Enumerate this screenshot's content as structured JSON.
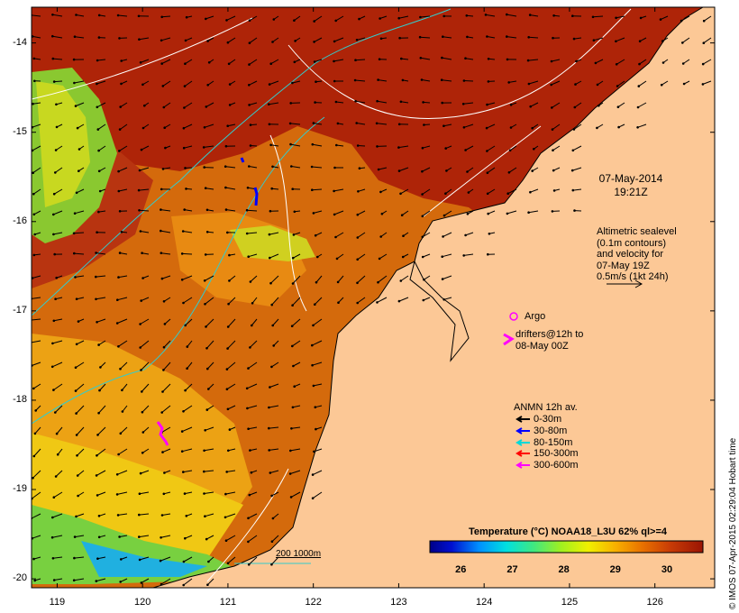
{
  "map": {
    "lat_labels": [
      "-14",
      "-15",
      "-16",
      "-17",
      "-18",
      "-19",
      "-20"
    ],
    "lon_labels": [
      "119",
      "120",
      "121",
      "122",
      "123",
      "124",
      "125",
      "126"
    ],
    "lat_range": [
      -20.1,
      -13.6
    ],
    "lon_range": [
      118.7,
      126.7
    ],
    "timestamp_date": "07-May-2014",
    "timestamp_time": "19:21Z",
    "altimetry_note": [
      "Altimetric sealevel",
      "(0.1m contours)",
      "and velocity for",
      "07-May 19Z",
      "0.5m/s (1kt 24h)"
    ],
    "argo_label": "Argo",
    "drifters_label": [
      "drifters@12h to",
      "08-May 00Z"
    ],
    "anmn_title": "ANMN 12h av.",
    "anmn_legend": [
      {
        "label": "0-30m",
        "color": "#000000"
      },
      {
        "label": "30-80m",
        "color": "#0000ff"
      },
      {
        "label": "80-150m",
        "color": "#00d8d8"
      },
      {
        "label": "150-300m",
        "color": "#ff0000"
      },
      {
        "label": "300-600m",
        "color": "#ff00ff"
      }
    ],
    "isobath_label": "200  1000m",
    "colorbar_title": "Temperature (°C) NOAA18_L3U 62% ql>=4",
    "colorbar_ticks": [
      "26",
      "27",
      "28",
      "29",
      "30"
    ],
    "colorbar_range": [
      25.4,
      30.7
    ],
    "credit": "© IMOS 07-Apr-2015 02:29:04 Hobart time",
    "colors": {
      "land": "#fcc896",
      "sst_hot": "#a81e06",
      "sst_warm": "#d2660a",
      "isobath_200": "#ffffff",
      "isobath_1000": "#33cccc",
      "argo": "#ff00ff",
      "drifter": "#ff00ff"
    }
  }
}
